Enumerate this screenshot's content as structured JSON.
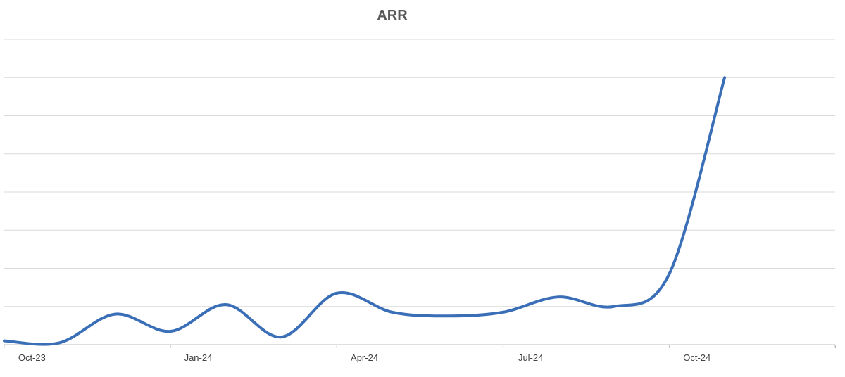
{
  "chart_data": {
    "type": "line",
    "title": "ARR",
    "xlabel": "",
    "ylabel": "",
    "x_ticks": [
      "Oct-23",
      "Jan-24",
      "Apr-24",
      "Jul-24",
      "Oct-24"
    ],
    "x": [
      "Oct-23",
      "Nov-23",
      "Dec-23",
      "Jan-24",
      "Feb-24",
      "Mar-24",
      "Apr-24",
      "May-24",
      "Jun-24",
      "Jul-24",
      "Aug-24",
      "Sep-24",
      "Oct-24",
      "Nov-24"
    ],
    "series": [
      {
        "values": [
          0.1,
          0.05,
          0.8,
          0.35,
          1.05,
          0.2,
          1.35,
          0.85,
          0.75,
          0.85,
          1.25,
          1.0,
          1.85,
          7.0
        ],
        "color": "#3a6fb8"
      }
    ],
    "ylim": [
      0,
      8
    ],
    "y_gridlines": 8,
    "y_tick_labels_visible": false,
    "grid": true,
    "legend": "none",
    "smooth": true
  }
}
